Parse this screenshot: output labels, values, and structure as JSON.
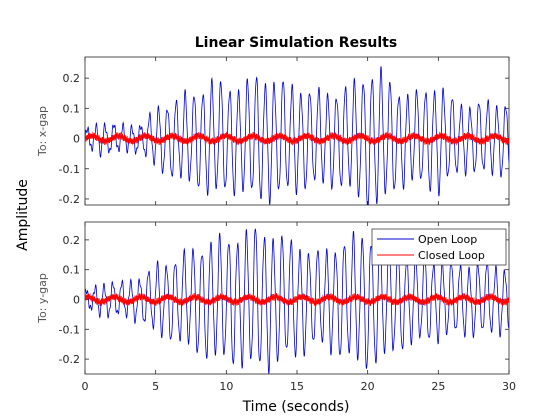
{
  "colors": {
    "open_loop": "#0000cc",
    "closed_loop": "#ff0000",
    "axes": "#262626"
  },
  "chart_data": {
    "type": "line",
    "title": "Linear Simulation Results",
    "xlabel": "Time (seconds)",
    "ylabel": "Amplitude",
    "xlim": [
      0,
      30
    ],
    "xticks": [
      "0",
      "5",
      "10",
      "15",
      "20",
      "25",
      "30"
    ],
    "legend": {
      "placement": "top-right of lower axes",
      "entries": [
        "Open Loop",
        "Closed Loop"
      ]
    },
    "grid": false,
    "subplots": [
      {
        "label": "To: x-gap",
        "ylim": [
          -0.22,
          0.27
        ],
        "yticks": [
          -0.2,
          -0.1,
          0,
          0.1,
          0.2
        ],
        "ytick_labels": [
          "-0.2",
          "-0.1",
          "0",
          "0.1",
          "0.2"
        ],
        "series": [
          {
            "name": "Open Loop",
            "color": "#0000cc",
            "period": 0.63,
            "envelope_t": [
              0,
              1,
              2,
              3,
              4,
              5,
              6,
              7,
              8,
              9,
              10,
              11,
              12,
              13,
              14,
              15,
              16,
              17,
              18,
              19,
              20,
              21,
              22,
              23,
              24,
              25,
              26,
              27,
              28,
              29,
              30
            ],
            "envelope_amp": [
              0.03,
              0.05,
              0.05,
              0.04,
              0.05,
              0.1,
              0.13,
              0.15,
              0.17,
              0.2,
              0.19,
              0.18,
              0.22,
              0.21,
              0.2,
              0.18,
              0.17,
              0.16,
              0.17,
              0.19,
              0.24,
              0.23,
              0.18,
              0.15,
              0.17,
              0.19,
              0.14,
              0.11,
              0.13,
              0.12,
              0.13
            ]
          },
          {
            "name": "Closed Loop",
            "color": "#ff0000",
            "amplitude": 0.015
          }
        ]
      },
      {
        "label": "To: y-gap",
        "ylim": [
          -0.25,
          0.26
        ],
        "yticks": [
          -0.2,
          -0.1,
          0,
          0.1,
          0.2
        ],
        "ytick_labels": [
          "-0.2",
          "-0.1",
          "0",
          "0.1",
          "0.2"
        ],
        "series": [
          {
            "name": "Open Loop",
            "color": "#0000cc",
            "period": 0.63,
            "envelope_t": [
              0,
              1,
              2,
              3,
              4,
              5,
              6,
              7,
              8,
              9,
              10,
              11,
              12,
              13,
              14,
              15,
              16,
              17,
              18,
              19,
              20,
              21,
              22,
              23,
              24,
              25,
              26,
              27,
              28,
              29,
              30
            ],
            "envelope_amp": [
              0.03,
              0.05,
              0.06,
              0.06,
              0.08,
              0.12,
              0.14,
              0.16,
              0.19,
              0.21,
              0.22,
              0.23,
              0.25,
              0.24,
              0.22,
              0.2,
              0.17,
              0.17,
              0.2,
              0.22,
              0.24,
              0.22,
              0.18,
              0.16,
              0.15,
              0.14,
              0.13,
              0.12,
              0.13,
              0.12,
              0.11
            ]
          },
          {
            "name": "Closed Loop",
            "color": "#ff0000",
            "amplitude": 0.015
          }
        ]
      }
    ]
  }
}
